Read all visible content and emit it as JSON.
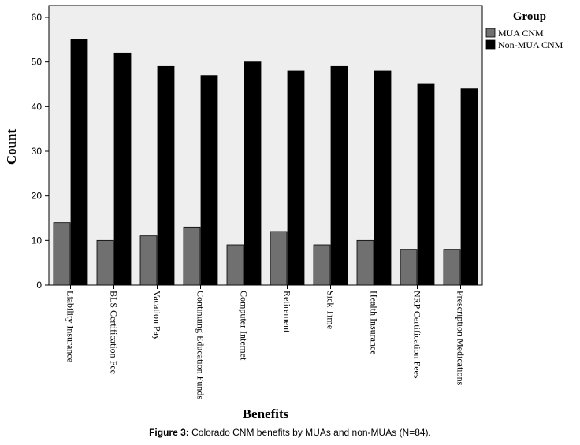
{
  "chart_data": {
    "type": "bar",
    "xlabel": "Benefits",
    "ylabel": "Count",
    "ylim": [
      0,
      60
    ],
    "yticks": [
      0,
      10,
      20,
      30,
      40,
      50,
      60
    ],
    "grid": false,
    "legend_position": "top-right",
    "legend_title": "Group",
    "categories": [
      "Liability Insurance",
      "BLS Certification Fee",
      "Vacation Pay",
      "Continuing Education Funds",
      "Computer Internet",
      "Retirement",
      "Sick Time",
      "Health Insurance",
      "NRP Certification Fees",
      "Prescription Medications"
    ],
    "series": [
      {
        "name": "MUA CNM",
        "color": "#707070",
        "values": [
          14,
          10,
          11,
          13,
          9,
          12,
          9,
          10,
          8,
          8
        ]
      },
      {
        "name": "Non-MUA CNM",
        "color": "#000000",
        "values": [
          55,
          52,
          49,
          47,
          50,
          48,
          49,
          48,
          45,
          44
        ]
      }
    ],
    "plot_background": "#eeeeee"
  },
  "caption": {
    "label": "Figure 3:",
    "text": " Colorado CNM benefits by MUAs and non-MUAs (N=84)."
  }
}
